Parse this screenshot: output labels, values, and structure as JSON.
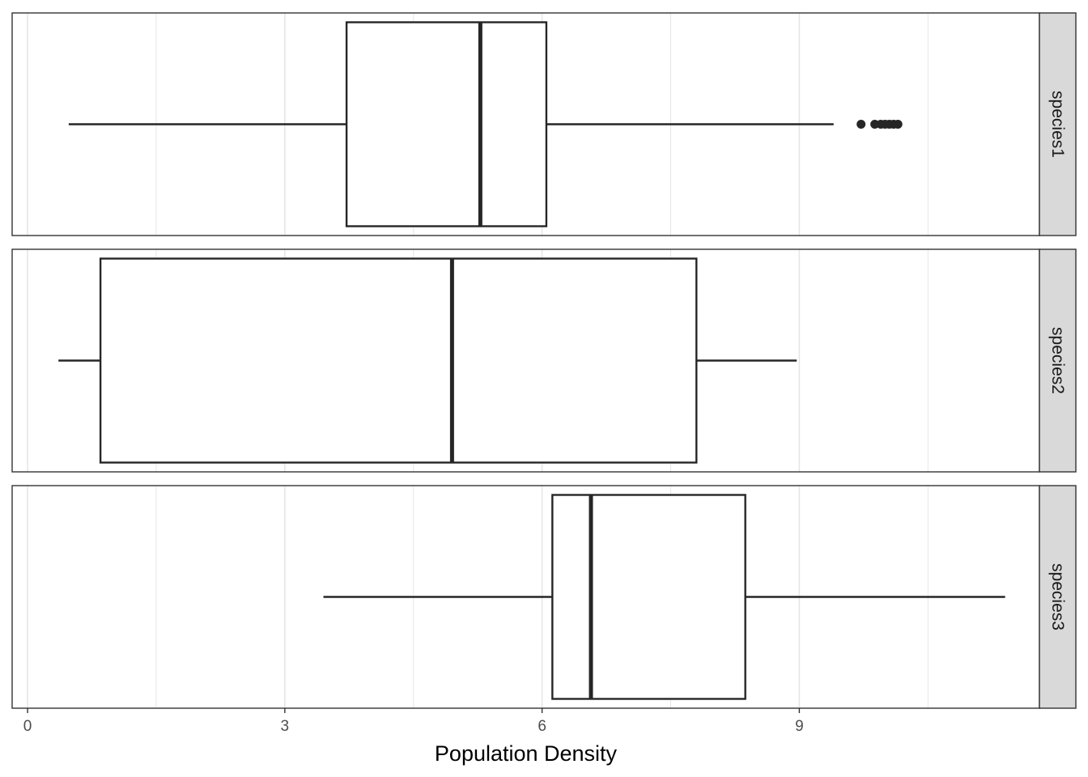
{
  "chart_data": {
    "type": "boxplot",
    "orientation": "horizontal",
    "facets": [
      "species1",
      "species2",
      "species3"
    ],
    "xlabel": "Population Density",
    "ylabel": "",
    "xlim": [
      -0.18,
      11.8
    ],
    "x_ticks": [
      0,
      3,
      6,
      9
    ],
    "grid": true,
    "boxes": [
      {
        "facet": "species1",
        "whisker_low": 0.48,
        "q1": 3.72,
        "median": 5.28,
        "q3": 6.05,
        "whisker_high": 9.4,
        "outliers": [
          9.72,
          9.88,
          9.95,
          10.0,
          10.05,
          10.1,
          10.15
        ]
      },
      {
        "facet": "species2",
        "whisker_low": 0.36,
        "q1": 0.85,
        "median": 4.95,
        "q3": 7.8,
        "whisker_high": 8.97,
        "outliers": []
      },
      {
        "facet": "species3",
        "whisker_low": 3.45,
        "q1": 6.12,
        "median": 6.57,
        "q3": 8.37,
        "whisker_high": 11.4,
        "outliers": []
      }
    ],
    "colors": {
      "box_stroke": "#262626",
      "panel_border": "#333333",
      "grid": "#e6e6e6",
      "strip_fill": "#d9d9d9",
      "box_fill": "#ffffff"
    }
  }
}
